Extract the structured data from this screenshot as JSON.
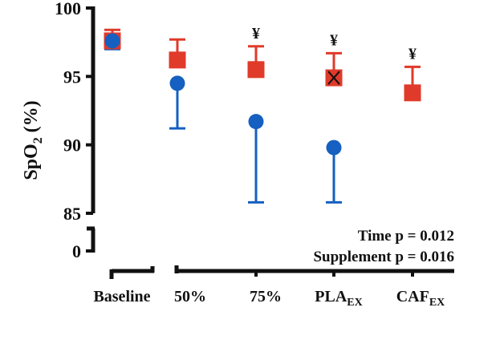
{
  "chart_data": {
    "type": "scatter",
    "title": "",
    "ylabel": "SpO2 (%)",
    "ylabel_main": "SpO",
    "ylabel_sub": "2",
    "ylabel_unit": " (%)",
    "ylim": [
      85,
      100
    ],
    "y_break": {
      "lower": 0,
      "upper": 85
    },
    "yticks": [
      100,
      95,
      90,
      85,
      0
    ],
    "ytick_labels": [
      "100",
      "95",
      "90",
      "85",
      "0"
    ],
    "categories": [
      "Baseline",
      "50%",
      "75%",
      "PLA_EX",
      "CAF_EX"
    ],
    "category_labels": [
      {
        "main": "Baseline",
        "sub": ""
      },
      {
        "main": "50%",
        "sub": ""
      },
      {
        "main": "75%",
        "sub": ""
      },
      {
        "main": "PLA",
        "sub": "EX"
      },
      {
        "main": "CAF",
        "sub": "EX"
      }
    ],
    "series": [
      {
        "name": "red-square",
        "marker": "square",
        "color": "#e03a2a",
        "values": [
          97.6,
          96.2,
          95.5,
          94.9,
          93.8
        ],
        "error_upper": [
          98.4,
          97.7,
          97.2,
          96.7,
          95.7
        ],
        "error_direction": "up",
        "significance": [
          "",
          "",
          "¥",
          "¥",
          "¥"
        ],
        "x_mark": [
          false,
          false,
          false,
          true,
          false
        ]
      },
      {
        "name": "blue-circle",
        "marker": "circle",
        "color": "#1560c0",
        "values": [
          97.6,
          94.5,
          91.7,
          89.8,
          null
        ],
        "error_lower": [
          97.0,
          91.2,
          85.8,
          85.8,
          null
        ],
        "error_direction": "down"
      }
    ],
    "annotations": [
      "Time p = 0.012",
      "Supplement p = 0.016"
    ],
    "grid": false,
    "legend": "none"
  }
}
